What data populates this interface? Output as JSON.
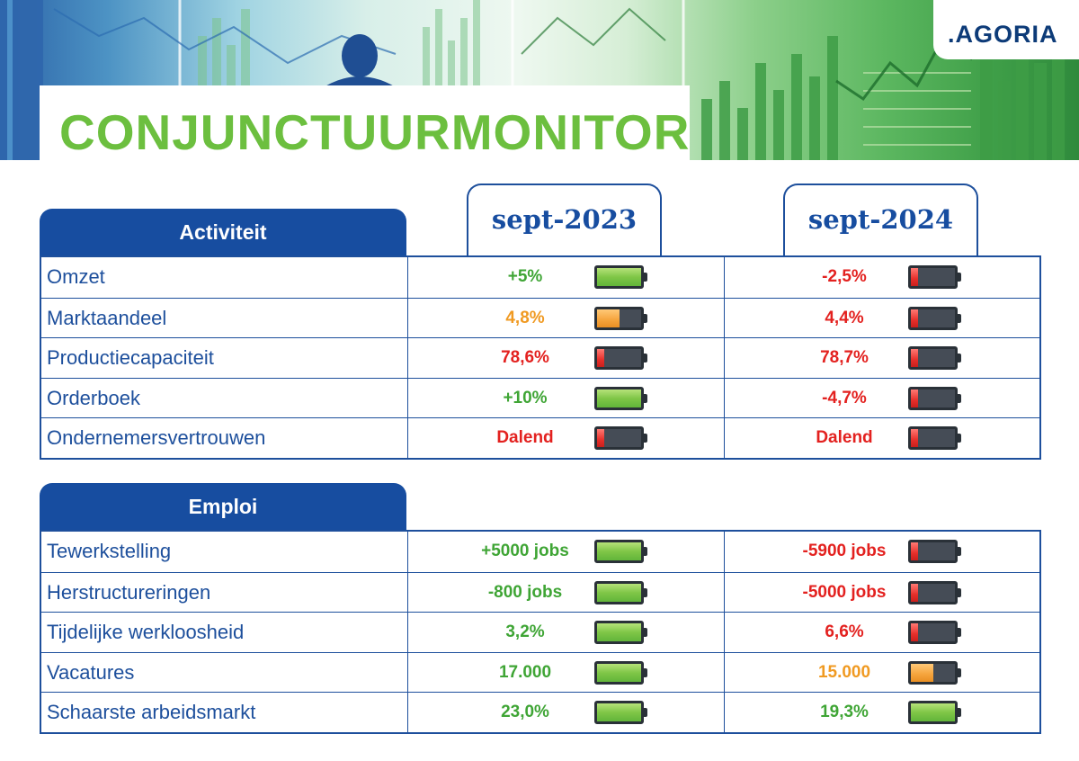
{
  "header": {
    "title": "CONJUNCTUURMONITOR",
    "logo": ".AGORIA"
  },
  "periods": [
    "sept-2023",
    "sept-2024"
  ],
  "colors": {
    "title_green": "#6cbf3f",
    "header_blue": "#174da0",
    "good": "#3fa535",
    "medium": "#f09a22",
    "bad": "#e3211f"
  },
  "sections": [
    {
      "title": "Activiteit",
      "rows": [
        {
          "label": "Omzet",
          "v1": {
            "text": "+5%",
            "color": "green",
            "level": "full"
          },
          "v2": {
            "text": "-2,5%",
            "color": "red",
            "level": "low"
          }
        },
        {
          "label": "Marktaandeel",
          "v1": {
            "text": "4,8%",
            "color": "orange",
            "level": "half"
          },
          "v2": {
            "text": "4,4%",
            "color": "red",
            "level": "low"
          }
        },
        {
          "label": "Productiecapaciteit",
          "v1": {
            "text": "78,6%",
            "color": "red",
            "level": "low"
          },
          "v2": {
            "text": "78,7%",
            "color": "red",
            "level": "low"
          }
        },
        {
          "label": "Orderboek",
          "v1": {
            "text": "+10%",
            "color": "green",
            "level": "full"
          },
          "v2": {
            "text": "-4,7%",
            "color": "red",
            "level": "low"
          }
        },
        {
          "label": "Ondernemersvertrouwen",
          "v1": {
            "text": "Dalend",
            "color": "red",
            "level": "low"
          },
          "v2": {
            "text": "Dalend",
            "color": "red",
            "level": "low"
          }
        }
      ]
    },
    {
      "title": "Emploi",
      "rows": [
        {
          "label": "Tewerkstelling",
          "v1": {
            "text": "+5000 jobs",
            "color": "green",
            "level": "full"
          },
          "v2": {
            "text": "-5900 jobs",
            "color": "red",
            "level": "low"
          }
        },
        {
          "label": "Herstructureringen",
          "v1": {
            "text": "-800 jobs",
            "color": "green",
            "level": "full"
          },
          "v2": {
            "text": "-5000 jobs",
            "color": "red",
            "level": "low"
          }
        },
        {
          "label": "Tijdelijke werkloosheid",
          "v1": {
            "text": "3,2%",
            "color": "green",
            "level": "full"
          },
          "v2": {
            "text": "6,6%",
            "color": "red",
            "level": "low"
          }
        },
        {
          "label": "Vacatures",
          "v1": {
            "text": "17.000",
            "color": "green",
            "level": "full"
          },
          "v2": {
            "text": "15.000",
            "color": "orange",
            "level": "half"
          }
        },
        {
          "label": "Schaarste arbeidsmarkt",
          "v1": {
            "text": "23,0%",
            "color": "green",
            "level": "full"
          },
          "v2": {
            "text": "19,3%",
            "color": "green",
            "level": "full"
          }
        }
      ]
    }
  ]
}
